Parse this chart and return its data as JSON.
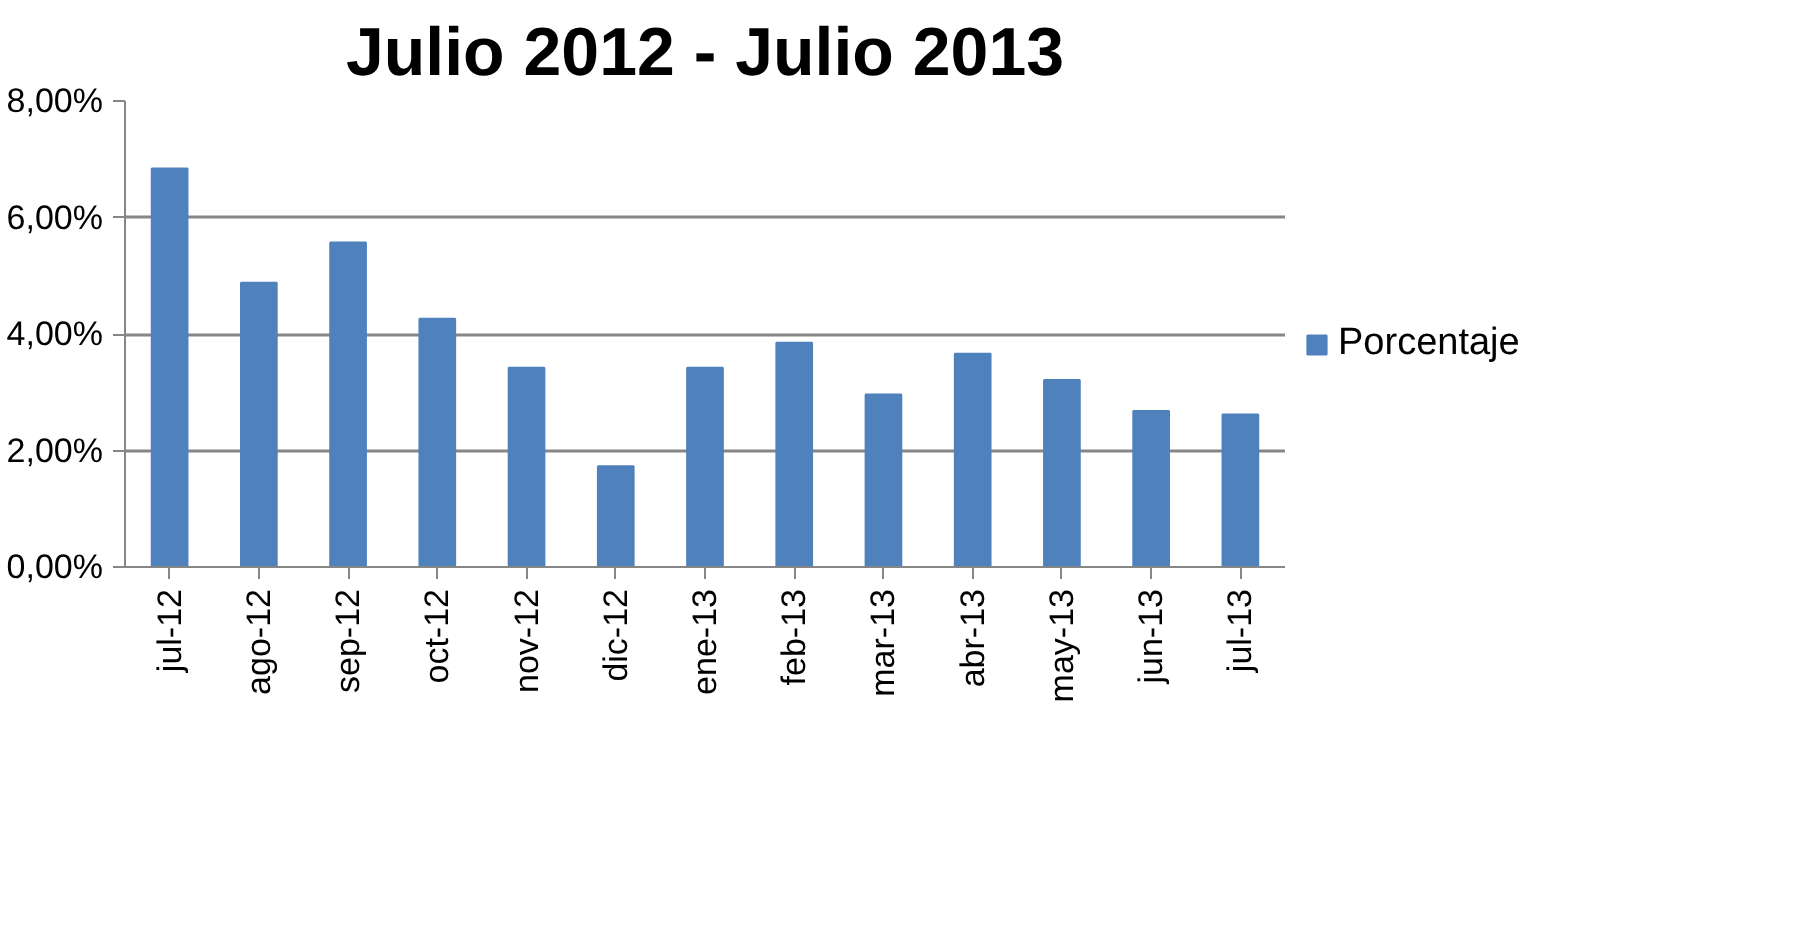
{
  "chart_data": {
    "type": "bar",
    "title": "Julio 2012 - Julio 2013",
    "categories": [
      "jul-12",
      "ago-12",
      "sep-12",
      "oct-12",
      "nov-12",
      "dic-12",
      "ene-13",
      "feb-13",
      "mar-13",
      "abr-13",
      "may-13",
      "jun-13",
      "jul-13"
    ],
    "series": [
      {
        "name": "Porcentaje",
        "color": "#4f81bd",
        "values": [
          6.84,
          4.88,
          5.57,
          4.26,
          3.42,
          1.73,
          3.42,
          3.85,
          2.96,
          3.66,
          3.21,
          2.68,
          2.62
        ]
      }
    ],
    "ylim": [
      0,
      8
    ],
    "yticks": [
      {
        "value": 0,
        "label": "0,00%"
      },
      {
        "value": 2,
        "label": "2,00%"
      },
      {
        "value": 4,
        "label": "4,00%"
      },
      {
        "value": 6,
        "label": "6,00%"
      },
      {
        "value": 8,
        "label": "8,00%"
      }
    ],
    "grid": "y",
    "legend": "right"
  }
}
